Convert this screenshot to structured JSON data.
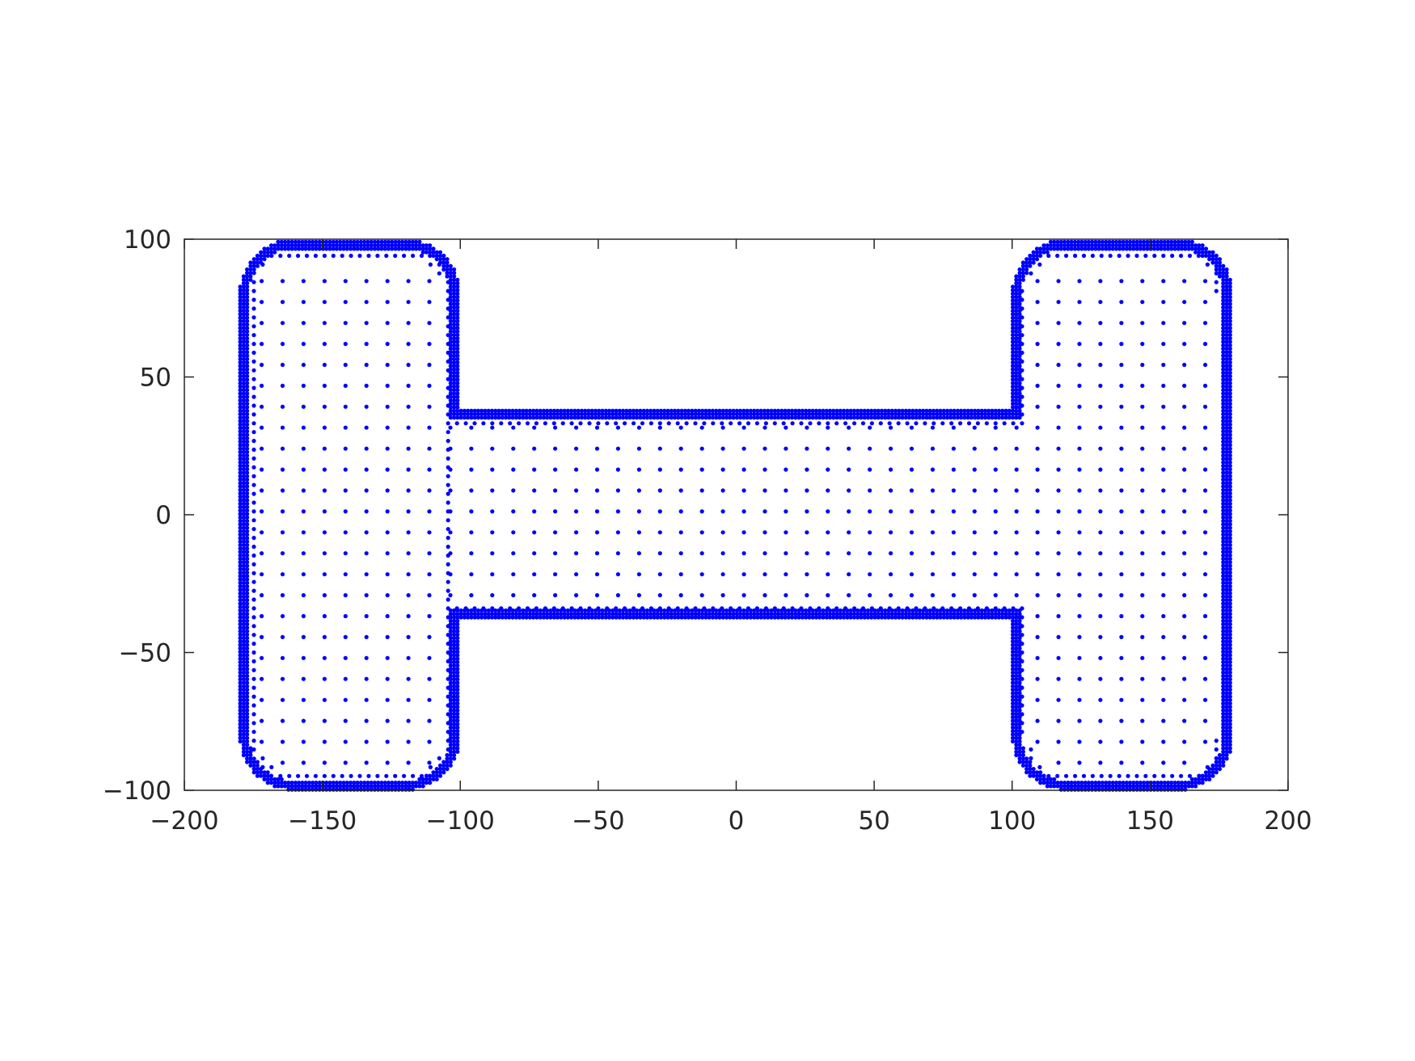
{
  "chart_data": {
    "type": "scatter",
    "title": "",
    "xlabel": "",
    "ylabel": "",
    "xlim": [
      -200,
      200
    ],
    "ylim": [
      -100,
      100
    ],
    "xticks": [
      -200,
      -150,
      -100,
      -50,
      0,
      50,
      100,
      150,
      200
    ],
    "yticks": [
      -100,
      -50,
      0,
      50,
      100
    ],
    "xtick_labels": [
      "−200",
      "−150",
      "−100",
      "−50",
      "0",
      "50",
      "100",
      "150",
      "200"
    ],
    "ytick_labels": [
      "−100",
      "−50",
      "0",
      "50",
      "100"
    ],
    "grid": false,
    "legend": "none",
    "marker_color": "#0000ff",
    "shape": {
      "description_of_points": "point cloud of an H-shaped domain: dense boundary layer, graded interior",
      "outer_x_range": [
        -180,
        180
      ],
      "outer_y_range": [
        -100,
        100
      ],
      "web_x_range": [
        -100,
        100
      ],
      "web_y_range": [
        -38,
        38
      ],
      "corner_radius": 20
    }
  }
}
